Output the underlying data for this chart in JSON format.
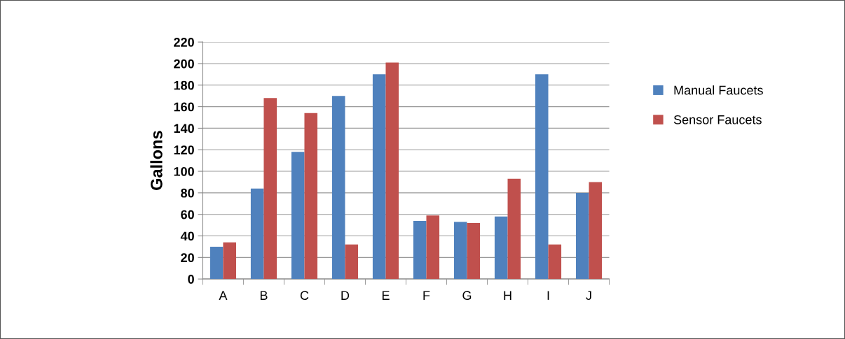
{
  "chart_data": {
    "type": "bar",
    "ylabel": "Gallons",
    "categories": [
      "A",
      "B",
      "C",
      "D",
      "E",
      "F",
      "G",
      "H",
      "I",
      "J"
    ],
    "series": [
      {
        "name": "Manual Faucets",
        "color": "#4f81bd",
        "values": [
          30,
          84,
          118,
          170,
          190,
          54,
          53,
          58,
          190,
          80
        ]
      },
      {
        "name": "Sensor Faucets",
        "color": "#c0504d",
        "values": [
          34,
          168,
          154,
          32,
          201,
          59,
          52,
          93,
          32,
          90
        ]
      }
    ],
    "ylim": [
      0,
      220
    ],
    "yticks": [
      0,
      20,
      40,
      60,
      80,
      100,
      120,
      140,
      160,
      180,
      200,
      220
    ],
    "grid": "y",
    "legend": "right"
  }
}
